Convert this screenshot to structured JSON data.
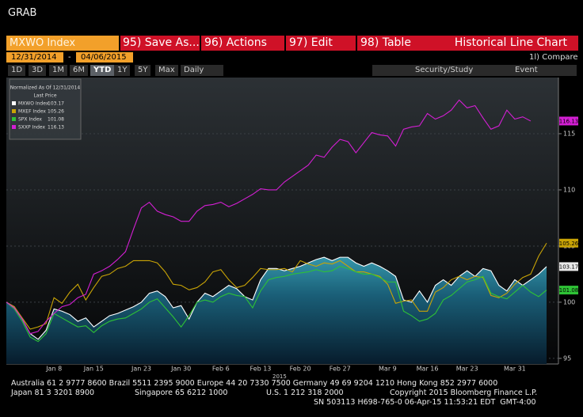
{
  "ui": {
    "title": "GRAB",
    "security": "MXWO Index",
    "menu": [
      "95) Save As...",
      "96) Actions",
      "97) Edit",
      "98) Table"
    ],
    "view": "Historical Line Chart",
    "start_date": "12/31/2014",
    "date_separator": "-",
    "end_date": "04/06/2015",
    "compare": "1l) Compare",
    "periods": [
      "1D",
      "3D",
      "1M",
      "6M",
      "YTD",
      "1Y",
      "5Y",
      "Max"
    ],
    "selected_period": "YTD",
    "frequency": "Daily",
    "tools": [
      "Security/Study",
      "Event"
    ],
    "footer": [
      [
        "Australia 61 2 9777 8600 Brazil 5511 2395 9000 Europe 44 20 7330 7500 Germany 49 69 9204 1210 Hong Kong 852 2977 6000"
      ],
      [
        "Japan 81 3 3201 8900",
        "Singapore 65 6212 1000",
        "U.S. 1 212 318 2000",
        "Copyright 2015 Bloomberg Finance L.P."
      ],
      [
        "SN 503113 H698-765-0 06-Apr-15 11:53:21 EDT  GMT-4:00"
      ]
    ]
  },
  "chart_data": {
    "type": "line",
    "legend_title": "Normalized As Of 12/31/2014",
    "legend_subtitle": "Last Price",
    "legend": "top-left",
    "grid": true,
    "categories": [
      null,
      null,
      null,
      null,
      null,
      null,
      "Jan 8",
      null,
      null,
      null,
      null,
      "Jan 15",
      null,
      null,
      null,
      null,
      null,
      "Jan 23",
      null,
      null,
      null,
      null,
      "Jan 30",
      null,
      null,
      null,
      null,
      "Feb 6",
      null,
      null,
      null,
      null,
      "Feb 13",
      null,
      null,
      null,
      null,
      "Feb 20",
      null,
      null,
      null,
      null,
      "Feb 27",
      null,
      null,
      null,
      null,
      null,
      "Mar 9",
      null,
      null,
      null,
      null,
      "Mar 16",
      null,
      null,
      null,
      null,
      "Mar 23",
      null,
      null,
      null,
      null,
      null,
      "Mar 31",
      null,
      null,
      null,
      null
    ],
    "x_year_label": "2015",
    "ylim": [
      94.5,
      120
    ],
    "yticks": [
      95,
      100,
      105,
      110,
      115
    ],
    "series": [
      {
        "name": "MXWO Index",
        "color": "#ffffff",
        "area": true,
        "values": [
          100,
          99.6,
          98.5,
          97.2,
          96.7,
          97.5,
          99.4,
          99.2,
          98.9,
          98.3,
          98.6,
          97.8,
          98.3,
          98.8,
          99.0,
          99.3,
          99.6,
          100.0,
          100.8,
          101.0,
          100.5,
          99.5,
          99.7,
          98.5,
          100.0,
          100.8,
          100.5,
          101.0,
          101.5,
          101.2,
          100.5,
          100.2,
          102.0,
          103.0,
          103.0,
          102.8,
          103.0,
          103.2,
          103.5,
          103.8,
          104.0,
          103.7,
          104.0,
          104.0,
          103.5,
          103.2,
          103.5,
          103.2,
          102.8,
          102.3,
          100.2,
          100.0,
          101.0,
          100.0,
          101.5,
          102.0,
          101.5,
          102.3,
          102.8,
          102.3,
          103.0,
          102.8,
          101.5,
          101.0,
          102.0,
          101.5,
          102.0,
          102.5,
          103.17
        ]
      },
      {
        "name": "MXEF Index",
        "color": "#c9a406",
        "values": [
          100,
          99.6,
          98.6,
          97.6,
          97.8,
          98.1,
          100.4,
          99.9,
          100.9,
          101.6,
          100.2,
          101.3,
          102.3,
          102.5,
          103.0,
          103.2,
          103.7,
          103.7,
          103.7,
          103.5,
          102.7,
          101.6,
          101.5,
          101.1,
          101.3,
          101.8,
          102.7,
          102.9,
          102.0,
          101.3,
          101.5,
          102.2,
          103.0,
          102.9,
          102.9,
          103.0,
          102.7,
          103.7,
          103.4,
          103.2,
          103.5,
          103.4,
          103.7,
          103.2,
          102.7,
          102.7,
          102.5,
          102.3,
          101.6,
          99.9,
          100.1,
          100.2,
          99.2,
          99.2,
          100.9,
          101.3,
          102.0,
          102.3,
          102.0,
          102.3,
          102.2,
          100.6,
          100.4,
          100.8,
          101.6,
          102.2,
          102.5,
          104.1,
          105.26
        ]
      },
      {
        "name": "SPX Index",
        "color": "#2ec235",
        "values": [
          100,
          99.4,
          98.3,
          96.9,
          96.5,
          97.2,
          99.0,
          98.6,
          98.2,
          97.8,
          97.9,
          97.3,
          97.9,
          98.3,
          98.5,
          98.6,
          99.0,
          99.4,
          100.0,
          100.3,
          99.5,
          98.7,
          97.8,
          98.8,
          100.0,
          100.2,
          100.0,
          100.5,
          100.8,
          100.6,
          100.5,
          99.5,
          101.0,
          102.0,
          102.2,
          102.3,
          102.5,
          102.6,
          102.7,
          102.9,
          102.7,
          102.8,
          103.2,
          103.0,
          102.7,
          102.5,
          102.5,
          102.2,
          101.8,
          101.8,
          99.2,
          98.8,
          98.3,
          98.5,
          99.0,
          100.2,
          100.6,
          101.2,
          101.8,
          102.0,
          102.3,
          100.8,
          100.5,
          100.3,
          100.9,
          101.5,
          100.9,
          100.5,
          101.08
        ]
      },
      {
        "name": "SXXP Index",
        "color": "#d41fd4",
        "values": [
          100,
          99.5,
          98.5,
          97.2,
          97.4,
          98.3,
          99.0,
          99.6,
          99.8,
          100.4,
          100.7,
          102.5,
          102.8,
          103.2,
          103.8,
          104.5,
          106.5,
          108.4,
          108.9,
          108.1,
          107.8,
          107.6,
          107.2,
          107.2,
          108.1,
          108.6,
          108.7,
          108.9,
          108.5,
          108.8,
          109.2,
          109.6,
          110.1,
          110.0,
          110.0,
          110.7,
          111.2,
          111.7,
          112.2,
          113.1,
          112.9,
          113.8,
          114.5,
          114.3,
          113.3,
          114.2,
          115.1,
          114.9,
          114.8,
          113.9,
          115.4,
          115.6,
          115.7,
          116.8,
          116.3,
          116.6,
          117.1,
          118.0,
          117.3,
          117.5,
          116.4,
          115.4,
          115.7,
          117.1,
          116.3,
          116.5,
          116.13,
          null,
          null
        ]
      }
    ]
  }
}
